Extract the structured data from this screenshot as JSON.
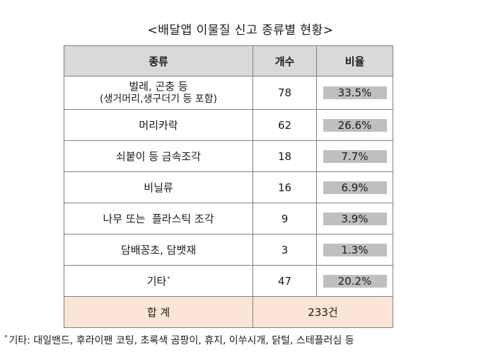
{
  "title": "<배달앱 이물질 신고 종류별 현황>",
  "table": {
    "headers": {
      "category": "종류",
      "count": "개수",
      "ratio": "비율"
    },
    "rows": [
      {
        "category": "벌레, 곤충 등",
        "category_sub": "(생거머리,생구더기 등 포함)",
        "count": "78",
        "ratio": "33.5%"
      },
      {
        "category": "머리카락",
        "category_sub": "",
        "count": "62",
        "ratio": "26.6%"
      },
      {
        "category": "쇠붙이 등 금속조각",
        "category_sub": "",
        "count": "18",
        "ratio": "7.7%"
      },
      {
        "category": "비닐류",
        "category_sub": "",
        "count": "16",
        "ratio": "6.9%"
      },
      {
        "category": "나무 또는  플라스틱 조각",
        "category_sub": "",
        "count": "9",
        "ratio": "3.9%"
      },
      {
        "category": "담배꽁초, 담뱃재",
        "category_sub": "",
        "count": "3",
        "ratio": "1.3%"
      },
      {
        "category": "기타",
        "category_marker": "*",
        "category_sub": "",
        "count": "47",
        "ratio": "20.2%"
      }
    ],
    "total": {
      "label": "합 계",
      "value": "233건"
    }
  },
  "footnote": {
    "marker": "*",
    "text": "기타: 대일밴드, 후라이팬 코팅, 초록색 곰팡이, 휴지, 이쑤시개, 닭털, 스테플러심 등"
  },
  "colors": {
    "header_bg": "#d9d9d9",
    "ratio_box_bg": "#bfbfbf",
    "total_row_bg": "#fbe5d6",
    "border": "#808080"
  }
}
